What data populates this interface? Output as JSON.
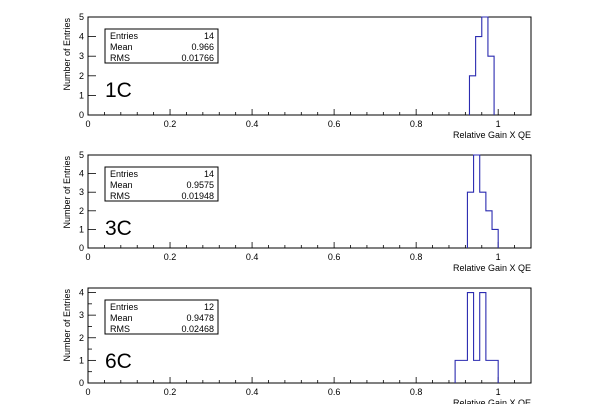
{
  "chart_data": [
    {
      "type": "bar",
      "label": "1C",
      "xlabel": "Relative Gain X QE",
      "ylabel": "Number of Entries",
      "xlim": [
        0,
        1.08
      ],
      "ylim": [
        0,
        5
      ],
      "x_ticks": [
        "0",
        "0.2",
        "0.4",
        "0.6",
        "0.8",
        "1"
      ],
      "y_ticks": [
        "0",
        "1",
        "2",
        "3",
        "4",
        "5"
      ],
      "stats": {
        "entries": "14",
        "mean": "0.966",
        "rms": "0.01766"
      },
      "bin_edges": [
        0.93,
        0.945,
        0.96,
        0.975,
        0.99
      ],
      "values": [
        2,
        4,
        5,
        3
      ]
    },
    {
      "type": "bar",
      "label": "3C",
      "xlabel": "Relative Gain X QE",
      "ylabel": "Number of Entries",
      "xlim": [
        0,
        1.08
      ],
      "ylim": [
        0,
        5
      ],
      "x_ticks": [
        "0",
        "0.2",
        "0.4",
        "0.6",
        "0.8",
        "1"
      ],
      "y_ticks": [
        "0",
        "1",
        "2",
        "3",
        "4",
        "5"
      ],
      "stats": {
        "entries": "14",
        "mean": "0.9575",
        "rms": "0.01948"
      },
      "bin_edges": [
        0.925,
        0.94,
        0.955,
        0.97,
        0.985,
        1.0
      ],
      "values": [
        3,
        5,
        3,
        2,
        1
      ]
    },
    {
      "type": "bar",
      "label": "6C",
      "xlabel": "Relative Gain X QE",
      "ylabel": "Number of Entries",
      "xlim": [
        0,
        1.08
      ],
      "ylim": [
        0,
        4.2
      ],
      "x_ticks": [
        "0",
        "0.5",
        "1",
        "1.5",
        "2",
        "2.5",
        "3",
        "3.5",
        "4"
      ],
      "y_tick_values": [
        0,
        0.5,
        1,
        1.5,
        2,
        2.5,
        3,
        3.5,
        4
      ],
      "x_tick_labels": [
        "0",
        "0.2",
        "0.4",
        "0.6",
        "0.8",
        "1"
      ],
      "stats": {
        "entries": "12",
        "mean": "0.9478",
        "rms": "0.02468"
      },
      "bin_edges": [
        0.895,
        0.925,
        0.94,
        0.955,
        0.97,
        0.985,
        1.0
      ],
      "values": [
        1,
        4,
        1,
        4,
        1,
        1
      ]
    }
  ],
  "stat_labels": {
    "entries": "Entries",
    "mean": "Mean",
    "rms": "RMS"
  }
}
